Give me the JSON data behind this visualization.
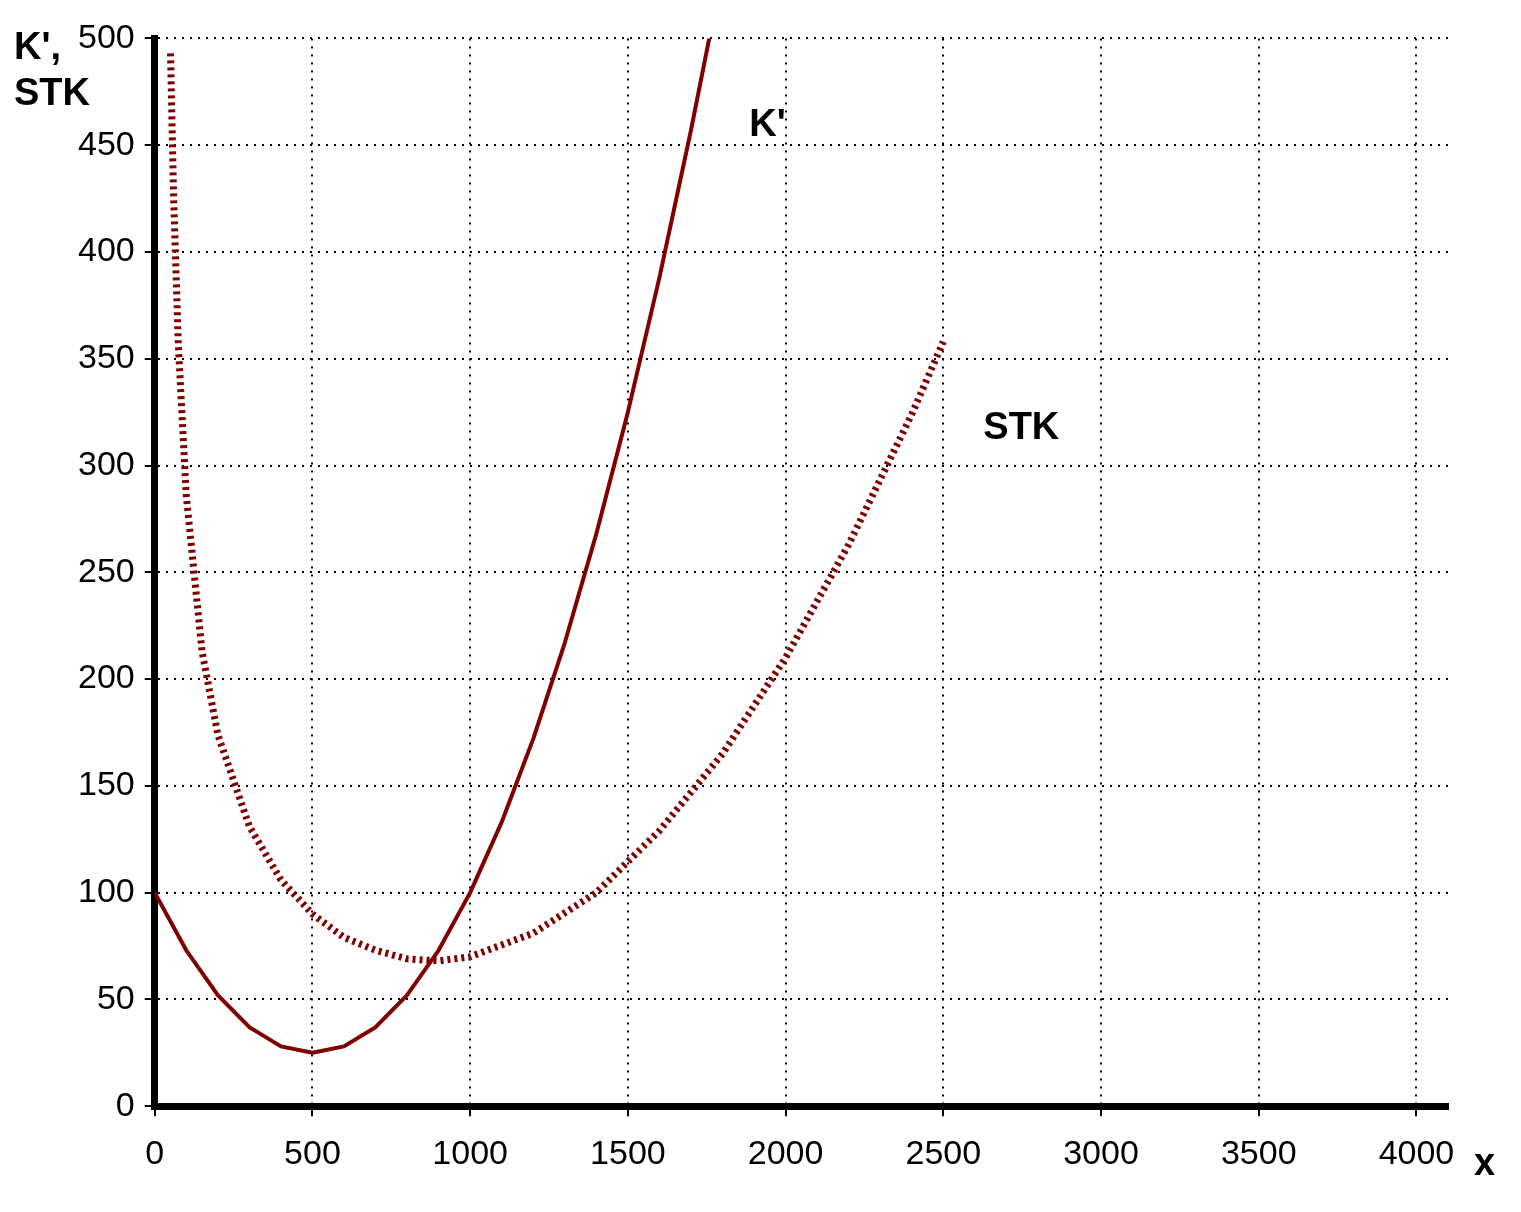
{
  "chart_data": {
    "type": "line",
    "xlabel": "x",
    "ylabel": "K',\nSTK",
    "xlim": [
      0,
      4100
    ],
    "ylim": [
      0,
      500
    ],
    "xticks": [
      0,
      500,
      1000,
      1500,
      2000,
      2500,
      3000,
      3500,
      4000
    ],
    "yticks": [
      0,
      50,
      100,
      150,
      200,
      250,
      300,
      350,
      400,
      450,
      500
    ],
    "grid": true,
    "legend": false,
    "marker": "none",
    "series": [
      {
        "name": "K'",
        "color": "#800000",
        "line_style": "solid",
        "x": [
          0,
          100,
          200,
          300,
          400,
          500,
          600,
          700,
          800,
          900,
          1000,
          1100,
          1200,
          1300,
          1400,
          1500,
          1600,
          1700,
          1758
        ],
        "values": [
          100,
          73,
          52,
          37,
          28,
          25,
          28,
          37,
          52,
          73,
          100,
          133,
          172,
          217,
          268,
          325,
          388,
          457,
          500
        ]
      },
      {
        "name": "STK",
        "color": "#800000",
        "line_style": "dotted",
        "x": [
          50,
          60,
          75,
          100,
          150,
          200,
          300,
          400,
          500,
          600,
          700,
          800,
          900,
          1000,
          1200,
          1400,
          1600,
          1800,
          2000,
          2200,
          2400,
          2500
        ],
        "values": [
          493,
          425,
          356,
          286,
          213,
          174,
          131,
          106,
          90,
          79,
          73,
          69,
          68,
          70,
          81,
          100,
          129,
          165,
          210,
          263,
          324,
          358
        ]
      }
    ]
  }
}
